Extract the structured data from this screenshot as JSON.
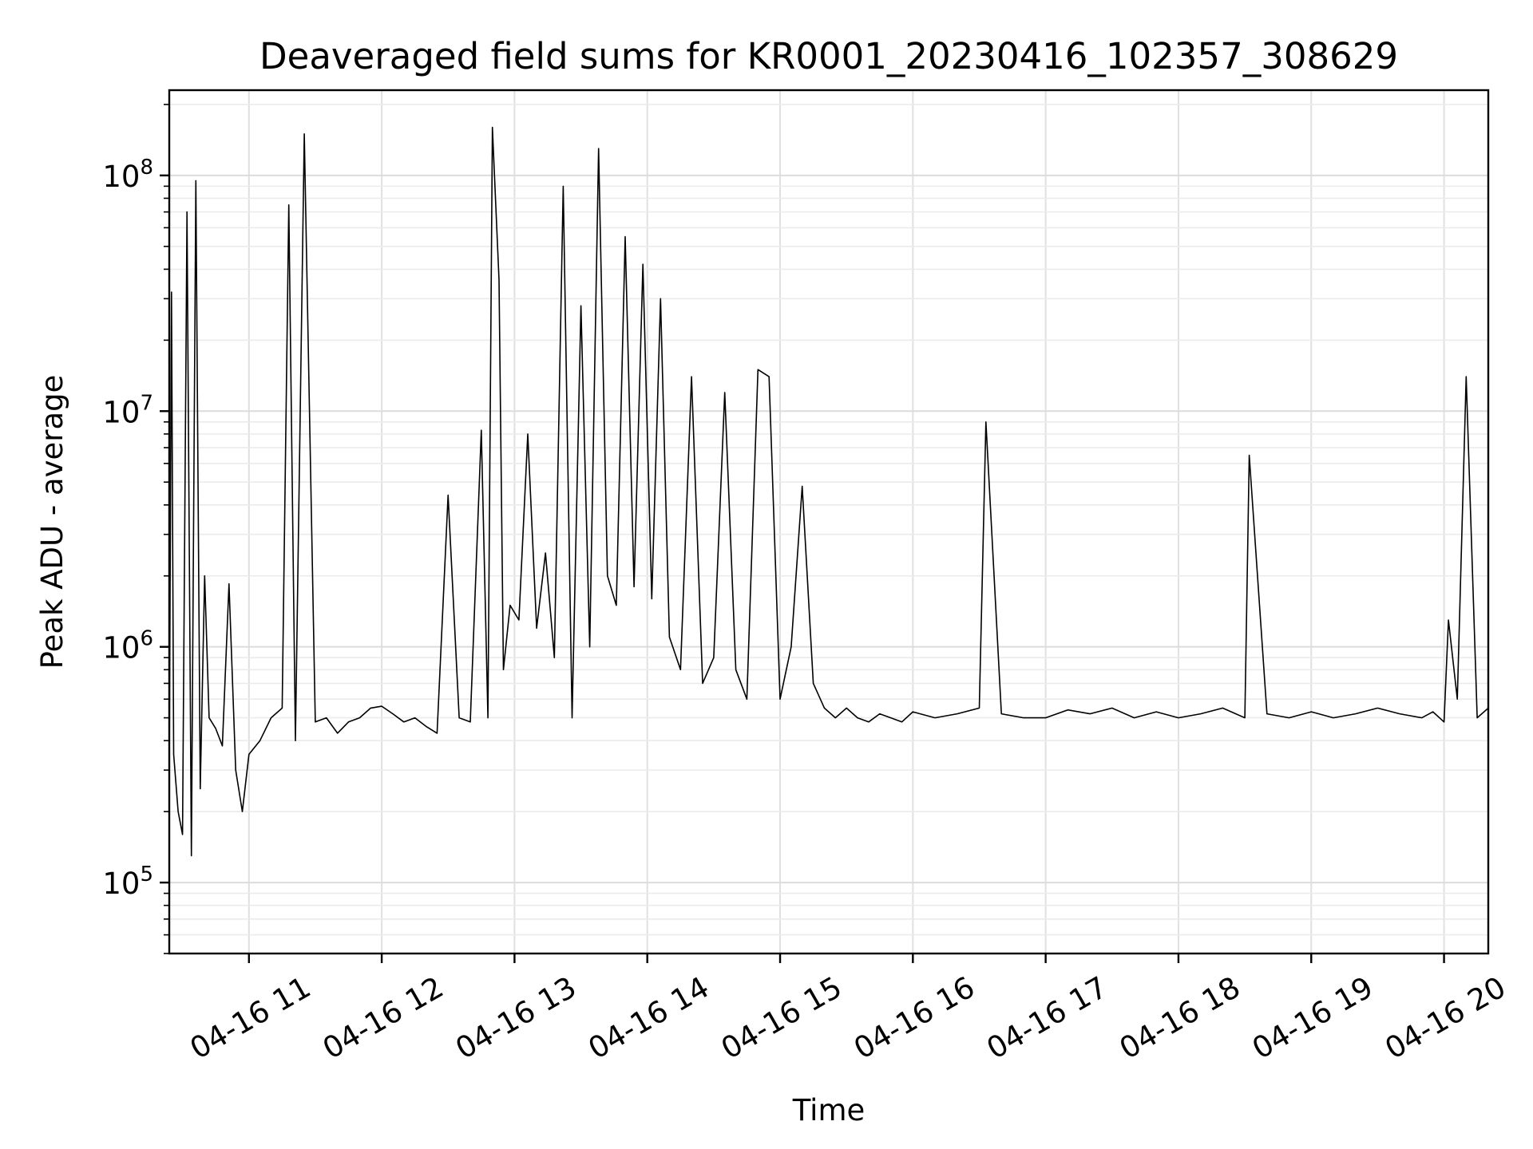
{
  "chart_data": {
    "type": "line",
    "title": "Deaveraged field sums for KR0001_20230416_102357_308629",
    "xlabel": "Time",
    "ylabel": "Peak ADU - average",
    "yscale": "log",
    "ylim": [
      50000,
      230000000
    ],
    "xlim": [
      "2023-04-16 10:24",
      "2023-04-16 20:20"
    ],
    "grid": true,
    "line_color": "#000000",
    "x_tick_labels": [
      "04-16 11",
      "04-16 12",
      "04-16 13",
      "04-16 14",
      "04-16 15",
      "04-16 16",
      "04-16 17",
      "04-16 18",
      "04-16 19",
      "04-16 20"
    ],
    "x_tick_times": [
      "2023-04-16 11:00",
      "2023-04-16 12:00",
      "2023-04-16 13:00",
      "2023-04-16 14:00",
      "2023-04-16 15:00",
      "2023-04-16 16:00",
      "2023-04-16 17:00",
      "2023-04-16 18:00",
      "2023-04-16 19:00",
      "2023-04-16 20:00"
    ],
    "y_ticks": [
      {
        "value": 100000,
        "base": "10",
        "exp": "5"
      },
      {
        "value": 1000000,
        "base": "10",
        "exp": "6"
      },
      {
        "value": 10000000,
        "base": "10",
        "exp": "7"
      },
      {
        "value": 100000000,
        "base": "10",
        "exp": "8"
      }
    ],
    "series": [
      {
        "x": [
          "2023-04-16 10:24",
          "2023-04-16 10:25",
          "2023-04-16 10:26",
          "2023-04-16 10:28",
          "2023-04-16 10:30",
          "2023-04-16 10:32",
          "2023-04-16 10:34",
          "2023-04-16 10:36",
          "2023-04-16 10:38",
          "2023-04-16 10:40",
          "2023-04-16 10:42",
          "2023-04-16 10:45",
          "2023-04-16 10:48",
          "2023-04-16 10:51",
          "2023-04-16 10:54",
          "2023-04-16 10:57",
          "2023-04-16 11:00",
          "2023-04-16 11:05",
          "2023-04-16 11:10",
          "2023-04-16 11:15",
          "2023-04-16 11:18",
          "2023-04-16 11:21",
          "2023-04-16 11:25",
          "2023-04-16 11:30",
          "2023-04-16 11:35",
          "2023-04-16 11:40",
          "2023-04-16 11:45",
          "2023-04-16 11:50",
          "2023-04-16 11:55",
          "2023-04-16 12:00",
          "2023-04-16 12:05",
          "2023-04-16 12:10",
          "2023-04-16 12:15",
          "2023-04-16 12:20",
          "2023-04-16 12:25",
          "2023-04-16 12:30",
          "2023-04-16 12:35",
          "2023-04-16 12:40",
          "2023-04-16 12:45",
          "2023-04-16 12:48",
          "2023-04-16 12:50",
          "2023-04-16 12:53",
          "2023-04-16 12:55",
          "2023-04-16 12:58",
          "2023-04-16 13:02",
          "2023-04-16 13:06",
          "2023-04-16 13:10",
          "2023-04-16 13:14",
          "2023-04-16 13:18",
          "2023-04-16 13:22",
          "2023-04-16 13:26",
          "2023-04-16 13:30",
          "2023-04-16 13:34",
          "2023-04-16 13:38",
          "2023-04-16 13:42",
          "2023-04-16 13:46",
          "2023-04-16 13:50",
          "2023-04-16 13:54",
          "2023-04-16 13:58",
          "2023-04-16 14:02",
          "2023-04-16 14:06",
          "2023-04-16 14:10",
          "2023-04-16 14:15",
          "2023-04-16 14:20",
          "2023-04-16 14:25",
          "2023-04-16 14:30",
          "2023-04-16 14:35",
          "2023-04-16 14:40",
          "2023-04-16 14:45",
          "2023-04-16 14:50",
          "2023-04-16 14:55",
          "2023-04-16 15:00",
          "2023-04-16 15:05",
          "2023-04-16 15:10",
          "2023-04-16 15:15",
          "2023-04-16 15:20",
          "2023-04-16 15:25",
          "2023-04-16 15:30",
          "2023-04-16 15:35",
          "2023-04-16 15:40",
          "2023-04-16 15:45",
          "2023-04-16 15:50",
          "2023-04-16 15:55",
          "2023-04-16 16:00",
          "2023-04-16 16:10",
          "2023-04-16 16:20",
          "2023-04-16 16:30",
          "2023-04-16 16:33",
          "2023-04-16 16:40",
          "2023-04-16 16:50",
          "2023-04-16 17:00",
          "2023-04-16 17:10",
          "2023-04-16 17:20",
          "2023-04-16 17:30",
          "2023-04-16 17:40",
          "2023-04-16 17:50",
          "2023-04-16 18:00",
          "2023-04-16 18:10",
          "2023-04-16 18:20",
          "2023-04-16 18:30",
          "2023-04-16 18:32",
          "2023-04-16 18:40",
          "2023-04-16 18:50",
          "2023-04-16 19:00",
          "2023-04-16 19:10",
          "2023-04-16 19:20",
          "2023-04-16 19:30",
          "2023-04-16 19:40",
          "2023-04-16 19:50",
          "2023-04-16 19:55",
          "2023-04-16 20:00",
          "2023-04-16 20:02",
          "2023-04-16 20:06",
          "2023-04-16 20:10",
          "2023-04-16 20:15",
          "2023-04-16 20:20"
        ],
        "values": [
          300000,
          32000000,
          350000,
          200000,
          160000,
          70000000,
          130000,
          95000000,
          250000,
          2000000,
          500000,
          450000,
          380000,
          1850000,
          300000,
          200000,
          350000,
          400000,
          500000,
          550000,
          75000000,
          400000,
          150000000,
          480000,
          500000,
          430000,
          480000,
          500000,
          550000,
          560000,
          520000,
          480000,
          500000,
          460000,
          430000,
          4400000,
          500000,
          480000,
          8300000,
          500000,
          160000000,
          36000000,
          800000,
          1500000,
          1300000,
          8000000,
          1200000,
          2500000,
          900000,
          90000000,
          500000,
          28000000,
          1000000,
          130000000,
          2000000,
          1500000,
          55000000,
          1800000,
          42000000,
          1600000,
          30000000,
          1100000,
          800000,
          14000000,
          700000,
          900000,
          12000000,
          800000,
          600000,
          15000000,
          14000000,
          600000,
          1000000,
          4800000,
          700000,
          550000,
          500000,
          550000,
          500000,
          480000,
          520000,
          500000,
          480000,
          530000,
          500000,
          520000,
          550000,
          9000000,
          520000,
          500000,
          500000,
          540000,
          520000,
          550000,
          500000,
          530000,
          500000,
          520000,
          550000,
          500000,
          6500000,
          520000,
          500000,
          530000,
          500000,
          520000,
          550000,
          520000,
          500000,
          530000,
          480000,
          1300000,
          600000,
          14000000,
          500000,
          550000
        ]
      }
    ]
  }
}
